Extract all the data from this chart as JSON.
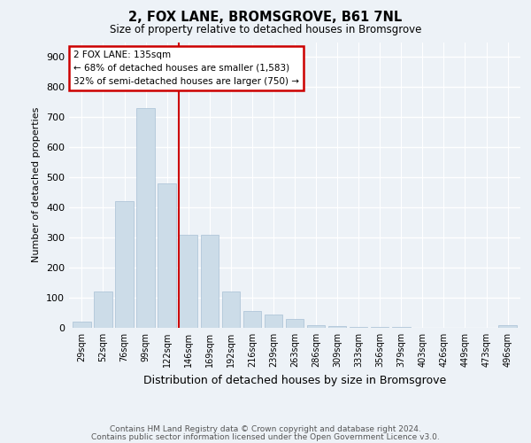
{
  "title1": "2, FOX LANE, BROMSGROVE, B61 7NL",
  "title2": "Size of property relative to detached houses in Bromsgrove",
  "xlabel": "Distribution of detached houses by size in Bromsgrove",
  "ylabel": "Number of detached properties",
  "categories": [
    "29sqm",
    "52sqm",
    "76sqm",
    "99sqm",
    "122sqm",
    "146sqm",
    "169sqm",
    "192sqm",
    "216sqm",
    "239sqm",
    "263sqm",
    "286sqm",
    "309sqm",
    "333sqm",
    "356sqm",
    "379sqm",
    "403sqm",
    "426sqm",
    "449sqm",
    "473sqm",
    "496sqm"
  ],
  "values": [
    20,
    120,
    420,
    730,
    480,
    310,
    310,
    120,
    55,
    45,
    30,
    10,
    5,
    3,
    2,
    2,
    1,
    1,
    1,
    1,
    8
  ],
  "bar_color": "#ccdce8",
  "bar_edgecolor": "#a8c0d4",
  "vline_x": 4.55,
  "vline_color": "#cc0000",
  "ylim": [
    0,
    950
  ],
  "yticks": [
    0,
    100,
    200,
    300,
    400,
    500,
    600,
    700,
    800,
    900
  ],
  "annotation_text": "2 FOX LANE: 135sqm\n← 68% of detached houses are smaller (1,583)\n32% of semi-detached houses are larger (750) →",
  "annotation_box_color": "#ffffff",
  "annotation_box_edgecolor": "#cc0000",
  "footer1": "Contains HM Land Registry data © Crown copyright and database right 2024.",
  "footer2": "Contains public sector information licensed under the Open Government Licence v3.0.",
  "background_color": "#edf2f7",
  "grid_color": "#ffffff"
}
